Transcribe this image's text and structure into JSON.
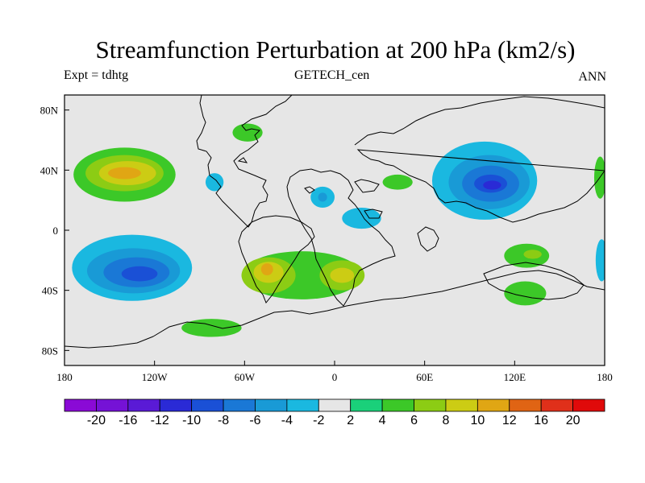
{
  "title": "Streamfunction Perturbation at 200 hPa (km2/s)",
  "left_string": "Expt = tdhtg",
  "center_string": "GETECH_cen",
  "right_string": "ANN",
  "map": {
    "projection": "cylindrical-equidistant",
    "lon_range": [
      -180,
      180
    ],
    "lat_range": [
      -90,
      90
    ],
    "x_ticks": [
      {
        "lon": -180,
        "label": "180"
      },
      {
        "lon": -120,
        "label": "120W"
      },
      {
        "lon": -60,
        "label": "60W"
      },
      {
        "lon": 0,
        "label": "0"
      },
      {
        "lon": 60,
        "label": "60E"
      },
      {
        "lon": 120,
        "label": "120E"
      },
      {
        "lon": 180,
        "label": "180"
      }
    ],
    "y_ticks": [
      {
        "lat": 80,
        "label": "80N"
      },
      {
        "lat": 40,
        "label": "40N"
      },
      {
        "lat": 0,
        "label": "0"
      },
      {
        "lat": -40,
        "label": "40S"
      },
      {
        "lat": -80,
        "label": "80S"
      }
    ],
    "background_color": "#e6e6e6"
  },
  "colorbar": {
    "levels": [
      "-20",
      "-16",
      "-12",
      "-10",
      "-8",
      "-6",
      "-4",
      "-2",
      "2",
      "4",
      "6",
      "8",
      "10",
      "12",
      "16",
      "20"
    ],
    "colors": [
      "#8a0ad6",
      "#7512d6",
      "#5a1ad6",
      "#2a2ad6",
      "#1a50d6",
      "#1a78d6",
      "#199ad6",
      "#1ab8e0",
      "#e6e6e6",
      "#1ad07a",
      "#3cc828",
      "#8ccc14",
      "#cccc14",
      "#e0a614",
      "#e06414",
      "#e0301a",
      "#e00a0a"
    ]
  },
  "contours": [
    {
      "name": "np-pos-1",
      "level": 4,
      "lon": -140,
      "lat": 37,
      "rlon": 34,
      "rlat": 18
    },
    {
      "name": "np-pos-2",
      "level": 6,
      "lon": -140,
      "lat": 38,
      "rlon": 26,
      "rlat": 12
    },
    {
      "name": "np-pos-3",
      "level": 8,
      "lon": -138,
      "lat": 38,
      "rlon": 19,
      "rlat": 8
    },
    {
      "name": "np-pos-4",
      "level": 10,
      "lon": -140,
      "lat": 38,
      "rlon": 11,
      "rlat": 4
    },
    {
      "name": "sp-neg-1",
      "level": -2,
      "lon": -135,
      "lat": -25,
      "rlon": 40,
      "rlat": 22
    },
    {
      "name": "sp-neg-2",
      "level": -4,
      "lon": -134,
      "lat": -27,
      "rlon": 31,
      "rlat": 15
    },
    {
      "name": "sp-neg-3",
      "level": -6,
      "lon": -132,
      "lat": -28,
      "rlon": 22,
      "rlat": 10
    },
    {
      "name": "sp-neg-4",
      "level": -8,
      "lon": -130,
      "lat": -29,
      "rlon": 12,
      "rlat": 5
    },
    {
      "name": "asia-neg-1",
      "level": -2,
      "lon": 100,
      "lat": 33,
      "rlon": 35,
      "rlat": 26
    },
    {
      "name": "asia-neg-2",
      "level": -4,
      "lon": 103,
      "lat": 32,
      "rlon": 27,
      "rlat": 18
    },
    {
      "name": "asia-neg-3",
      "level": -6,
      "lon": 104,
      "lat": 31,
      "rlon": 19,
      "rlat": 12
    },
    {
      "name": "asia-neg-4",
      "level": -8,
      "lon": 104,
      "lat": 31,
      "rlon": 11,
      "rlat": 6
    },
    {
      "name": "asia-neg-5",
      "level": -10,
      "lon": 105,
      "lat": 30,
      "rlon": 6,
      "rlat": 3
    },
    {
      "name": "sa-pos-1",
      "level": 4,
      "lon": -22,
      "lat": -30,
      "rlon": 40,
      "rlat": 16
    },
    {
      "name": "sa-pos-2",
      "level": 6,
      "lon": -44,
      "lat": -30,
      "rlon": 18,
      "rlat": 12
    },
    {
      "name": "sa-pos-3",
      "level": 6,
      "lon": 5,
      "lat": -30,
      "rlon": 15,
      "rlat": 10
    },
    {
      "name": "sa-pos-4",
      "level": 8,
      "lon": -44,
      "lat": -28,
      "rlon": 10,
      "rlat": 7
    },
    {
      "name": "sa-pos-5",
      "level": 8,
      "lon": 5,
      "lat": -30,
      "rlon": 8,
      "rlat": 5
    },
    {
      "name": "sa-pos-6",
      "level": 10,
      "lon": -45,
      "lat": -26,
      "rlon": 4,
      "rlat": 4
    },
    {
      "name": "io-pos-1",
      "level": 4,
      "lon": 128,
      "lat": -17,
      "rlon": 15,
      "rlat": 8
    },
    {
      "name": "io-pos-2",
      "level": 6,
      "lon": 132,
      "lat": -16,
      "rlon": 6,
      "rlat": 3
    },
    {
      "name": "aus-pos-1",
      "level": 4,
      "lon": 127,
      "lat": -42,
      "rlon": 14,
      "rlat": 8
    },
    {
      "name": "na-pos-1",
      "level": 4,
      "lon": 42,
      "lat": 32,
      "rlon": 10,
      "rlat": 5
    },
    {
      "name": "af-neg-1",
      "level": -2,
      "lon": 18,
      "lat": 8,
      "rlon": 13,
      "rlat": 7
    },
    {
      "name": "atl-neg-1",
      "level": -2,
      "lon": -8,
      "lat": 22,
      "rlon": 8,
      "rlat": 7
    },
    {
      "name": "atl-neg-2",
      "level": -4,
      "lon": -8,
      "lat": 22,
      "rlon": 3,
      "rlat": 3
    },
    {
      "name": "nam-neg-1",
      "level": -2,
      "lon": -80,
      "lat": 32,
      "rlon": 6,
      "rlat": 6
    },
    {
      "name": "eur-pos-1",
      "level": 4,
      "lon": -58,
      "lat": 65,
      "rlon": 10,
      "rlat": 6
    },
    {
      "name": "so-pos-1",
      "level": 4,
      "lon": -82,
      "lat": -65,
      "rlon": 20,
      "rlat": 6
    },
    {
      "name": "ep-pos-1",
      "level": 4,
      "lon": 177,
      "lat": 35,
      "rlon": 4,
      "rlat": 14
    },
    {
      "name": "ep-neg-1",
      "level": -2,
      "lon": 178,
      "lat": -20,
      "rlon": 4,
      "rlat": 14
    }
  ]
}
